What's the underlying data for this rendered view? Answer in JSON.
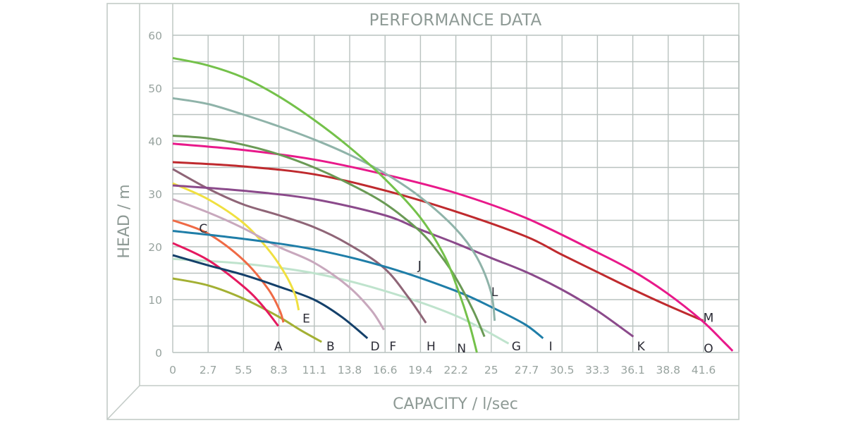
{
  "chart_data": {
    "type": "line",
    "title": "PERFORMANCE DATA",
    "xlabel": "CAPACITY / l/sec",
    "ylabel": "HEAD / m",
    "xlim": [
      0,
      44.4
    ],
    "ylim": [
      0,
      60
    ],
    "x_ticks": [
      "0",
      "2.7",
      "5.5",
      "8.3",
      "11.1",
      "13.8",
      "16.6",
      "19.4",
      "22.2",
      "25",
      "27.7",
      "30.5",
      "33.3",
      "36.1",
      "38.8",
      "41.6"
    ],
    "y_ticks": [
      "0",
      "10",
      "20",
      "30",
      "40",
      "50",
      "60"
    ],
    "grid": true,
    "legend_position": "inline labels at curve ends",
    "series": [
      {
        "name": "A",
        "color": "#e5195f",
        "points": [
          [
            0,
            20.7
          ],
          [
            2.77,
            17.5
          ],
          [
            5.55,
            12.5
          ],
          [
            7.0,
            9
          ],
          [
            8.3,
            5
          ]
        ]
      },
      {
        "name": "B",
        "color": "#a3b033",
        "points": [
          [
            0,
            14
          ],
          [
            2.77,
            12.7
          ],
          [
            5.55,
            10.2
          ],
          [
            8.3,
            6.8
          ],
          [
            10.0,
            4.3
          ],
          [
            11.7,
            2
          ]
        ]
      },
      {
        "name": "C",
        "color": "#ef6a45",
        "points": [
          [
            0,
            25
          ],
          [
            2.77,
            22.5
          ],
          [
            5.55,
            17.5
          ],
          [
            7.5,
            12
          ],
          [
            8.4,
            8
          ],
          [
            8.7,
            5.7
          ]
        ]
      },
      {
        "name": "D",
        "color": "#14406a",
        "points": [
          [
            0,
            18.4
          ],
          [
            2.77,
            16.5
          ],
          [
            5.55,
            14.7
          ],
          [
            8.3,
            12.5
          ],
          [
            11.1,
            10
          ],
          [
            13.3,
            6.7
          ],
          [
            15.3,
            2.7
          ]
        ]
      },
      {
        "name": "E",
        "color": "#f0e040",
        "points": [
          [
            0,
            32
          ],
          [
            2.77,
            29
          ],
          [
            5.55,
            24.5
          ],
          [
            7.5,
            19.5
          ],
          [
            8.8,
            15
          ],
          [
            9.6,
            11
          ],
          [
            9.9,
            8
          ]
        ]
      },
      {
        "name": "F",
        "color": "#c8a8bd",
        "points": [
          [
            0,
            29
          ],
          [
            2.77,
            26.5
          ],
          [
            5.55,
            23.5
          ],
          [
            8.3,
            20
          ],
          [
            11.1,
            17
          ],
          [
            13.8,
            12.5
          ],
          [
            15.6,
            8
          ],
          [
            16.6,
            4.3
          ]
        ]
      },
      {
        "name": "G",
        "color": "#bfe3cd",
        "points": [
          [
            0,
            17.7
          ],
          [
            5.55,
            16.8
          ],
          [
            11.1,
            15
          ],
          [
            16.6,
            11.7
          ],
          [
            22.2,
            7
          ],
          [
            26.4,
            1.7
          ]
        ]
      },
      {
        "name": "H",
        "color": "#8f6577",
        "points": [
          [
            0,
            34.7
          ],
          [
            2.77,
            31
          ],
          [
            5.55,
            28
          ],
          [
            8.3,
            26
          ],
          [
            11.1,
            23.7
          ],
          [
            13.8,
            20.5
          ],
          [
            16.6,
            16
          ],
          [
            18.5,
            10.5
          ],
          [
            19.9,
            5.6
          ]
        ]
      },
      {
        "name": "I",
        "color": "#1f7ea8",
        "points": [
          [
            0,
            23
          ],
          [
            5.55,
            21.5
          ],
          [
            11.1,
            19.5
          ],
          [
            16.6,
            16.3
          ],
          [
            22.2,
            11.7
          ],
          [
            25.3,
            8.3
          ],
          [
            27.7,
            5.3
          ],
          [
            29.1,
            2.7
          ]
        ]
      },
      {
        "name": "J",
        "color": "#6a9a55",
        "points": [
          [
            0,
            41
          ],
          [
            2.77,
            40.5
          ],
          [
            5.55,
            39.3
          ],
          [
            8.3,
            37.5
          ],
          [
            11.1,
            35
          ],
          [
            13.8,
            32
          ],
          [
            16.6,
            28.3
          ],
          [
            19.4,
            23
          ],
          [
            21.0,
            18.5
          ],
          [
            22.2,
            14.3
          ],
          [
            23.6,
            8
          ],
          [
            24.5,
            3
          ]
        ]
      },
      {
        "name": "K",
        "color": "#8b4a8b",
        "points": [
          [
            0,
            31.6
          ],
          [
            5.55,
            30.6
          ],
          [
            11.1,
            29
          ],
          [
            16.6,
            26
          ],
          [
            19.4,
            23.3
          ],
          [
            22.2,
            20.7
          ],
          [
            25,
            17.9
          ],
          [
            27.7,
            15.3
          ],
          [
            30.5,
            12
          ],
          [
            33.3,
            8
          ],
          [
            36.2,
            3
          ]
        ]
      },
      {
        "name": "L",
        "color": "#8fb3a9",
        "points": [
          [
            0,
            48.1
          ],
          [
            2.77,
            47
          ],
          [
            5.55,
            45
          ],
          [
            8.3,
            42.8
          ],
          [
            11.1,
            40.3
          ],
          [
            13.8,
            37.5
          ],
          [
            16.6,
            34
          ],
          [
            19.4,
            29.5
          ],
          [
            22.2,
            23.5
          ],
          [
            23.9,
            18
          ],
          [
            25.0,
            11.5
          ],
          [
            25.3,
            6
          ]
        ]
      },
      {
        "name": "M",
        "color": "#bf2a2e",
        "points": [
          [
            0,
            36
          ],
          [
            5.55,
            35.2
          ],
          [
            11.1,
            33.7
          ],
          [
            16.6,
            30.7
          ],
          [
            22.2,
            26.7
          ],
          [
            27.7,
            22
          ],
          [
            30.5,
            18.6
          ],
          [
            33.3,
            15.3
          ],
          [
            36.1,
            12
          ],
          [
            38.8,
            9
          ],
          [
            41.7,
            6
          ]
        ]
      },
      {
        "name": "N",
        "color": "#74c14a",
        "points": [
          [
            0,
            55.7
          ],
          [
            2.77,
            54.3
          ],
          [
            5.55,
            52
          ],
          [
            8.3,
            48.5
          ],
          [
            11.1,
            44
          ],
          [
            13.8,
            39
          ],
          [
            16.6,
            33
          ],
          [
            19.4,
            25.7
          ],
          [
            21.3,
            18.5
          ],
          [
            22.4,
            12
          ],
          [
            23.3,
            5.5
          ],
          [
            23.9,
            0
          ]
        ]
      },
      {
        "name": "O",
        "color": "#e8198a",
        "points": [
          [
            0,
            39.5
          ],
          [
            5.55,
            38.3
          ],
          [
            11.1,
            36.5
          ],
          [
            16.6,
            33.7
          ],
          [
            22.2,
            30.2
          ],
          [
            27.7,
            25.5
          ],
          [
            33.3,
            19
          ],
          [
            36.1,
            15.5
          ],
          [
            38.8,
            11.3
          ],
          [
            41.6,
            6
          ],
          [
            43.3,
            2
          ],
          [
            44.0,
            0.3
          ]
        ]
      }
    ],
    "labels": [
      {
        "text": "A",
        "cap": 8.3,
        "head": 1.2
      },
      {
        "text": "B",
        "cap": 12.4,
        "head": 1.2
      },
      {
        "text": "C",
        "cap": 2.4,
        "head": 23.5
      },
      {
        "text": "D",
        "cap": 15.9,
        "head": 1.2
      },
      {
        "text": "E",
        "cap": 10.5,
        "head": 6.5
      },
      {
        "text": "F",
        "cap": 17.3,
        "head": 1.2
      },
      {
        "text": "G",
        "cap": 27.0,
        "head": 1.2
      },
      {
        "text": "H",
        "cap": 20.3,
        "head": 1.2
      },
      {
        "text": "I",
        "cap": 29.7,
        "head": 1.2
      },
      {
        "text": "J",
        "cap": 19.4,
        "head": 16.5
      },
      {
        "text": "K",
        "cap": 36.8,
        "head": 1.2
      },
      {
        "text": "L",
        "cap": 25.3,
        "head": 11.5
      },
      {
        "text": "M",
        "cap": 42.1,
        "head": 6.6
      },
      {
        "text": "N",
        "cap": 22.7,
        "head": 0.8
      },
      {
        "text": "O",
        "cap": 42.1,
        "head": 0.8
      }
    ]
  }
}
